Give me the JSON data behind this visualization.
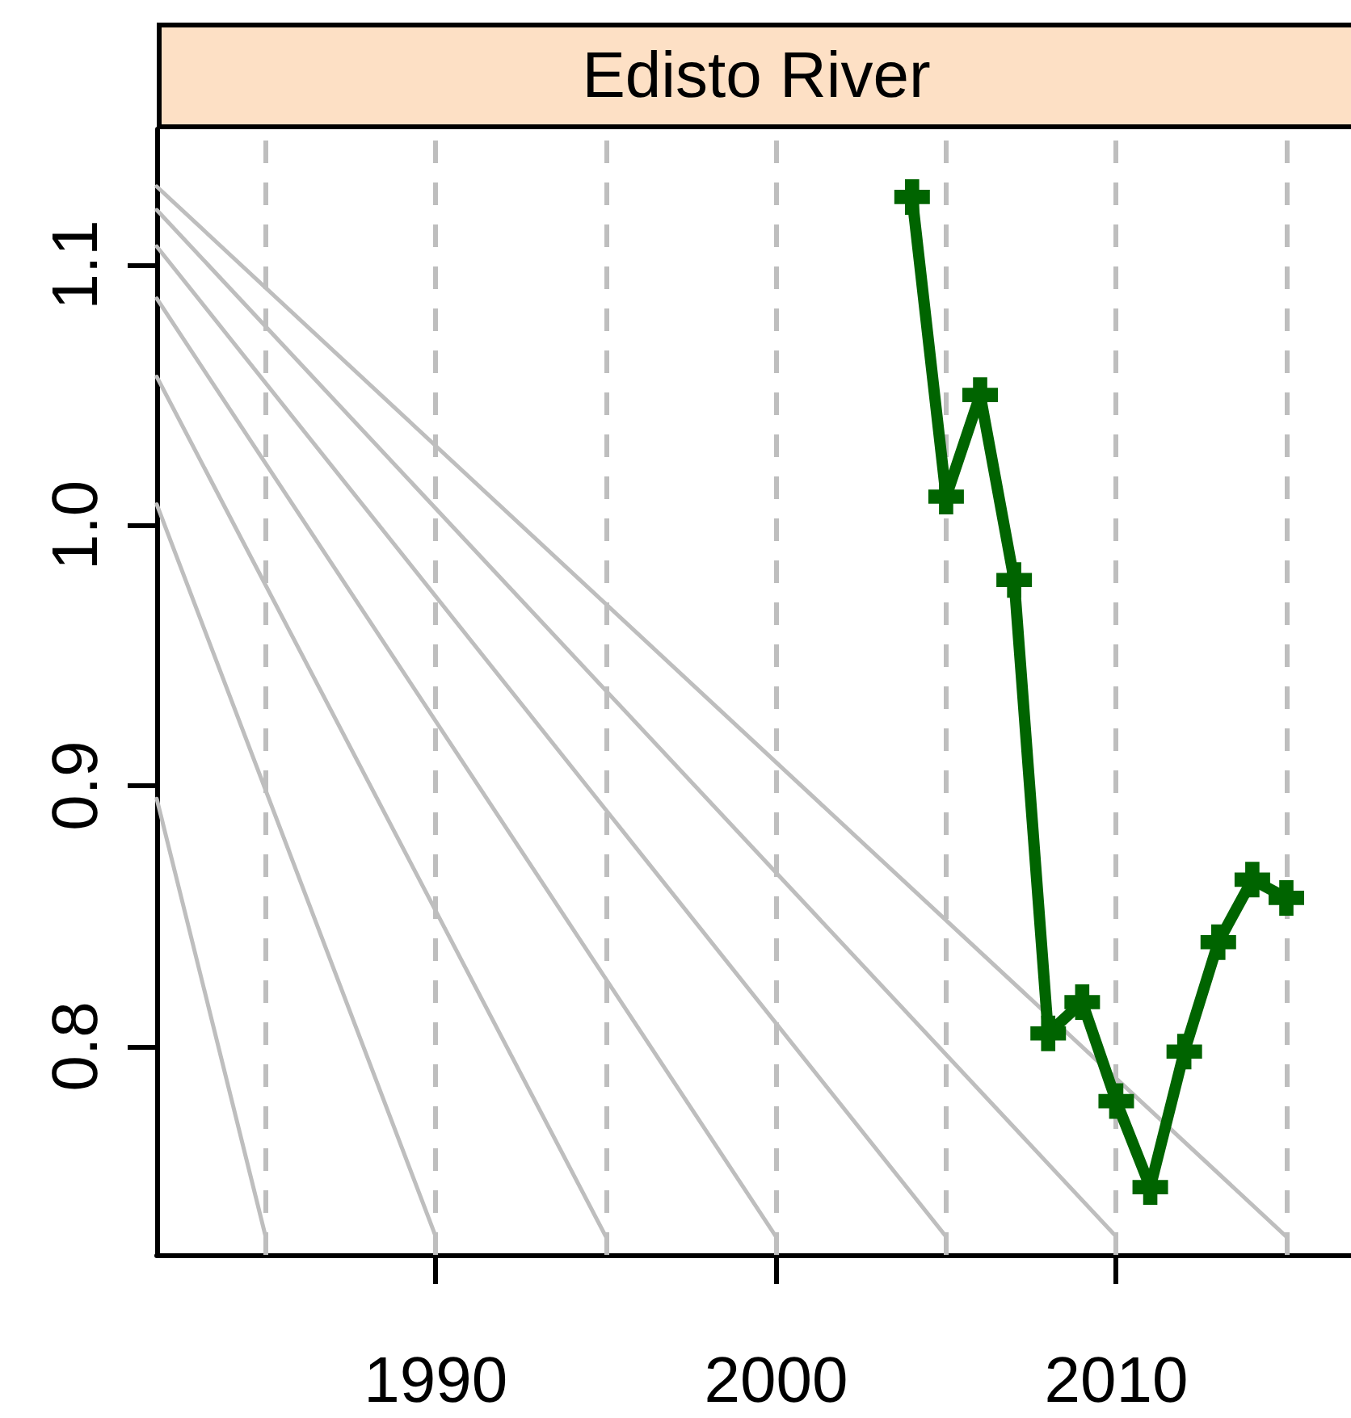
{
  "chart_data": {
    "type": "line",
    "title": "Edisto River",
    "xlim": [
      1981.8,
      2016.9
    ],
    "xticks": [
      1990,
      2000,
      2010
    ],
    "ylim": [
      0.72,
      1.152
    ],
    "yticks": [
      {
        "value": 0.8,
        "label": "0.8"
      },
      {
        "value": 0.9,
        "label": "0.9"
      },
      {
        "value": 1.0,
        "label": "1.0"
      },
      {
        "value": 1.1,
        "label": "1.1"
      }
    ],
    "grid": false,
    "marker": "cross",
    "line_style": "solid",
    "ref_lines": [
      {
        "axis": "x",
        "value": 1985,
        "label": null,
        "color": "#bebebe",
        "line_style": "dashed"
      },
      {
        "axis": "x",
        "value": 1990,
        "label": null,
        "color": "#bebebe",
        "line_style": "dashed"
      },
      {
        "axis": "x",
        "value": 1995,
        "label": null,
        "color": "#bebebe",
        "line_style": "dashed"
      },
      {
        "axis": "x",
        "value": 2000,
        "label": null,
        "color": "#bebebe",
        "line_style": "dashed"
      },
      {
        "axis": "x",
        "value": 2005,
        "label": null,
        "color": "#bebebe",
        "line_style": "dashed"
      },
      {
        "axis": "x",
        "value": 2010,
        "label": null,
        "color": "#bebebe",
        "line_style": "dashed"
      },
      {
        "axis": "x",
        "value": 2015,
        "label": null,
        "color": "#bebebe",
        "line_style": "dashed"
      }
    ],
    "series": [
      {
        "marker": "none",
        "color": "#bebebe",
        "x": [
          1981.8,
          1985
        ],
        "values": [
          0.895,
          0.727
        ]
      },
      {
        "marker": "none",
        "color": "#bebebe",
        "x": [
          1981.8,
          1990
        ],
        "values": [
          1.008,
          0.727
        ]
      },
      {
        "marker": "none",
        "color": "#bebebe",
        "x": [
          1981.8,
          1995
        ],
        "values": [
          1.057,
          0.727
        ]
      },
      {
        "marker": "none",
        "color": "#bebebe",
        "x": [
          1981.8,
          2000
        ],
        "values": [
          1.087,
          0.727
        ]
      },
      {
        "marker": "none",
        "color": "#bebebe",
        "x": [
          1981.8,
          2005
        ],
        "values": [
          1.107,
          0.727
        ]
      },
      {
        "marker": "none",
        "color": "#bebebe",
        "x": [
          1981.8,
          2010
        ],
        "values": [
          1.121,
          0.727
        ]
      },
      {
        "marker": "none",
        "color": "#bebebe",
        "x": [
          1981.8,
          2015
        ],
        "values": [
          1.13,
          0.727
        ]
      },
      {
        "color": "#006400",
        "x": [
          2004,
          2005,
          2006,
          2007,
          2008,
          2009,
          2010,
          2011,
          2012,
          2013,
          2014,
          2015
        ],
        "values": [
          1.126,
          1.011,
          1.05,
          0.979,
          0.805,
          0.817,
          0.779,
          0.746,
          0.798,
          0.84,
          0.864,
          0.857
        ]
      }
    ]
  }
}
